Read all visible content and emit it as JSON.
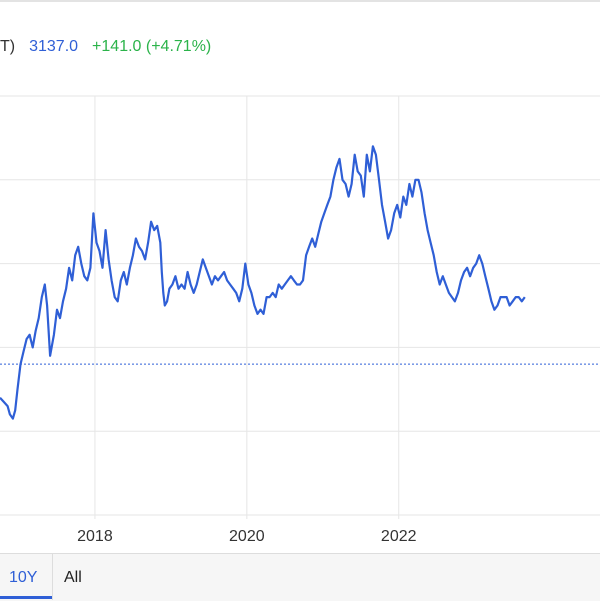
{
  "header": {
    "ticker": "T)",
    "price": "3137.0",
    "change": "+141.0 (+4.71%)"
  },
  "colors": {
    "line": "#2f5fd6",
    "grid": "#e6e6e6",
    "baseline": "#2f5fd6",
    "change_positive": "#2bb34a"
  },
  "range_selector": {
    "active": "10Y",
    "options": [
      "10Y",
      "All"
    ]
  },
  "chart_data": {
    "type": "line",
    "title": "",
    "xlabel": "",
    "ylabel": "",
    "x_ticks": [
      2018,
      2020,
      2022
    ],
    "xlim": [
      2016.75,
      2024.65
    ],
    "ylim": [
      0,
      100
    ],
    "baseline_value": 36,
    "grid": true,
    "series": [
      {
        "values": [
          [
            2016.75,
            28
          ],
          [
            2016.8,
            27
          ],
          [
            2016.85,
            26
          ],
          [
            2016.88,
            24
          ],
          [
            2016.92,
            23
          ],
          [
            2016.95,
            25
          ],
          [
            2016.98,
            30
          ],
          [
            2017.02,
            36
          ],
          [
            2017.06,
            39
          ],
          [
            2017.1,
            42
          ],
          [
            2017.14,
            43
          ],
          [
            2017.18,
            40
          ],
          [
            2017.22,
            44
          ],
          [
            2017.26,
            47
          ],
          [
            2017.3,
            52
          ],
          [
            2017.34,
            55
          ],
          [
            2017.37,
            50
          ],
          [
            2017.41,
            38
          ],
          [
            2017.46,
            43
          ],
          [
            2017.5,
            49
          ],
          [
            2017.54,
            47
          ],
          [
            2017.58,
            51
          ],
          [
            2017.62,
            54
          ],
          [
            2017.66,
            59
          ],
          [
            2017.7,
            56
          ],
          [
            2017.74,
            62
          ],
          [
            2017.78,
            64
          ],
          [
            2017.82,
            60
          ],
          [
            2017.86,
            57
          ],
          [
            2017.9,
            56
          ],
          [
            2017.94,
            59
          ],
          [
            2017.98,
            72
          ],
          [
            2018.02,
            65
          ],
          [
            2018.06,
            63
          ],
          [
            2018.1,
            59
          ],
          [
            2018.14,
            68
          ],
          [
            2018.18,
            61
          ],
          [
            2018.22,
            56
          ],
          [
            2018.26,
            52
          ],
          [
            2018.3,
            51
          ],
          [
            2018.34,
            56
          ],
          [
            2018.38,
            58
          ],
          [
            2018.42,
            55
          ],
          [
            2018.46,
            59
          ],
          [
            2018.5,
            62
          ],
          [
            2018.54,
            66
          ],
          [
            2018.58,
            64
          ],
          [
            2018.62,
            63
          ],
          [
            2018.66,
            61
          ],
          [
            2018.7,
            65
          ],
          [
            2018.74,
            70
          ],
          [
            2018.78,
            68
          ],
          [
            2018.82,
            69
          ],
          [
            2018.86,
            65
          ],
          [
            2018.88,
            58
          ],
          [
            2018.9,
            53
          ],
          [
            2018.92,
            50
          ],
          [
            2018.95,
            51
          ],
          [
            2018.98,
            54
          ],
          [
            2019.02,
            55
          ],
          [
            2019.06,
            57
          ],
          [
            2019.1,
            54
          ],
          [
            2019.14,
            55
          ],
          [
            2019.18,
            54
          ],
          [
            2019.22,
            58
          ],
          [
            2019.26,
            55
          ],
          [
            2019.3,
            53
          ],
          [
            2019.34,
            55
          ],
          [
            2019.38,
            58
          ],
          [
            2019.42,
            61
          ],
          [
            2019.46,
            59
          ],
          [
            2019.5,
            57
          ],
          [
            2019.54,
            55
          ],
          [
            2019.58,
            57
          ],
          [
            2019.62,
            56
          ],
          [
            2019.66,
            57
          ],
          [
            2019.7,
            58
          ],
          [
            2019.74,
            56
          ],
          [
            2019.78,
            55
          ],
          [
            2019.82,
            54
          ],
          [
            2019.86,
            53
          ],
          [
            2019.9,
            51
          ],
          [
            2019.94,
            54
          ],
          [
            2019.98,
            60
          ],
          [
            2020.02,
            55
          ],
          [
            2020.06,
            53
          ],
          [
            2020.1,
            50
          ],
          [
            2020.14,
            48
          ],
          [
            2020.18,
            49
          ],
          [
            2020.22,
            48
          ],
          [
            2020.26,
            52
          ],
          [
            2020.3,
            52
          ],
          [
            2020.34,
            53
          ],
          [
            2020.38,
            52
          ],
          [
            2020.42,
            55
          ],
          [
            2020.46,
            54
          ],
          [
            2020.5,
            55
          ],
          [
            2020.54,
            56
          ],
          [
            2020.58,
            57
          ],
          [
            2020.62,
            56
          ],
          [
            2020.66,
            55
          ],
          [
            2020.7,
            55
          ],
          [
            2020.74,
            56
          ],
          [
            2020.78,
            62
          ],
          [
            2020.82,
            64
          ],
          [
            2020.86,
            66
          ],
          [
            2020.9,
            64
          ],
          [
            2020.94,
            67
          ],
          [
            2020.98,
            70
          ],
          [
            2021.02,
            72
          ],
          [
            2021.06,
            74
          ],
          [
            2021.1,
            76
          ],
          [
            2021.14,
            80
          ],
          [
            2021.18,
            83
          ],
          [
            2021.22,
            85
          ],
          [
            2021.26,
            80
          ],
          [
            2021.3,
            79
          ],
          [
            2021.34,
            76
          ],
          [
            2021.38,
            79
          ],
          [
            2021.42,
            86
          ],
          [
            2021.46,
            82
          ],
          [
            2021.5,
            81
          ],
          [
            2021.54,
            76
          ],
          [
            2021.58,
            86
          ],
          [
            2021.62,
            82
          ],
          [
            2021.66,
            88
          ],
          [
            2021.7,
            86
          ],
          [
            2021.74,
            80
          ],
          [
            2021.78,
            74
          ],
          [
            2021.82,
            70
          ],
          [
            2021.86,
            66
          ],
          [
            2021.9,
            68
          ],
          [
            2021.94,
            72
          ],
          [
            2021.98,
            74
          ],
          [
            2022.02,
            71
          ],
          [
            2022.06,
            76
          ],
          [
            2022.1,
            74
          ],
          [
            2022.14,
            79
          ],
          [
            2022.18,
            76
          ],
          [
            2022.22,
            80
          ],
          [
            2022.26,
            80
          ],
          [
            2022.3,
            77
          ],
          [
            2022.34,
            72
          ],
          [
            2022.38,
            68
          ],
          [
            2022.42,
            65
          ],
          [
            2022.46,
            62
          ],
          [
            2022.5,
            58
          ],
          [
            2022.54,
            55
          ],
          [
            2022.58,
            57
          ],
          [
            2022.62,
            55
          ],
          [
            2022.66,
            53
          ],
          [
            2022.7,
            52
          ],
          [
            2022.74,
            51
          ],
          [
            2022.78,
            53
          ],
          [
            2022.82,
            56
          ],
          [
            2022.86,
            58
          ],
          [
            2022.9,
            59
          ],
          [
            2022.94,
            57
          ],
          [
            2022.98,
            59
          ],
          [
            2023.02,
            60
          ],
          [
            2023.06,
            62
          ],
          [
            2023.1,
            60
          ],
          [
            2023.14,
            57
          ],
          [
            2023.18,
            54
          ],
          [
            2023.22,
            51
          ],
          [
            2023.26,
            49
          ],
          [
            2023.3,
            50
          ],
          [
            2023.34,
            52
          ],
          [
            2023.38,
            52
          ],
          [
            2023.42,
            52
          ],
          [
            2023.46,
            50
          ],
          [
            2023.5,
            51
          ],
          [
            2023.54,
            52
          ],
          [
            2023.58,
            52
          ],
          [
            2023.62,
            51
          ],
          [
            2023.66,
            52
          ]
        ]
      }
    ]
  }
}
